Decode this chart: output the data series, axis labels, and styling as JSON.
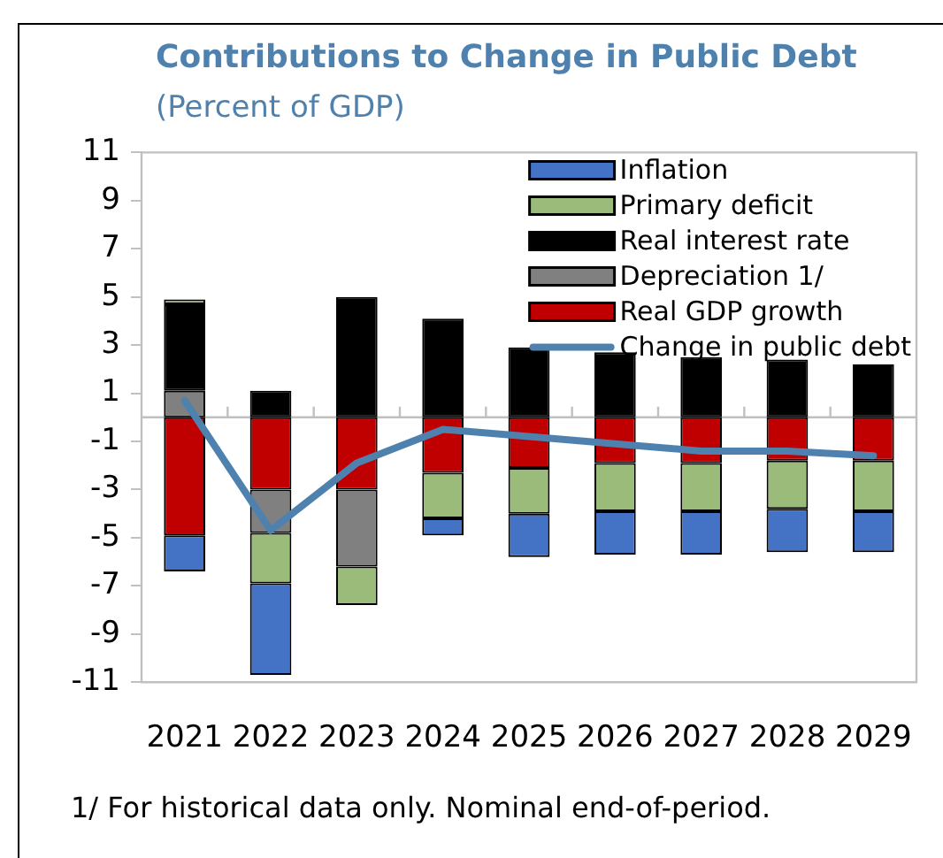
{
  "chart_data": {
    "type": "bar",
    "title": "Contributions to Change in Public Debt",
    "subtitle": "(Percent of GDP)",
    "categories": [
      "2021",
      "2022",
      "2023",
      "2024",
      "2025",
      "2026",
      "2027",
      "2028",
      "2029"
    ],
    "stacked": true,
    "series": [
      {
        "name": "Real GDP growth",
        "color": "#c00000",
        "values": [
          -4.9,
          -3.0,
          -3.0,
          -2.3,
          -2.1,
          -1.9,
          -1.9,
          -1.8,
          -1.8
        ]
      },
      {
        "name": "Depreciation 1/",
        "color": "#808080",
        "values": [
          1.1,
          -1.8,
          -3.2,
          null,
          null,
          null,
          null,
          null,
          null
        ]
      },
      {
        "name": "Real interest rate",
        "color": "#000000",
        "values": [
          3.6,
          1.1,
          5.0,
          4.1,
          2.9,
          2.7,
          2.5,
          2.4,
          2.2
        ]
      },
      {
        "name": "Primary deficit",
        "color": "#9bbb7b",
        "values": [
          0.2,
          -2.1,
          -1.6,
          -1.9,
          -1.9,
          -2.0,
          -2.0,
          -2.0,
          -2.1
        ]
      },
      {
        "name": "Inflation",
        "color": "#4472c4",
        "values": [
          -1.5,
          -3.8,
          null,
          -0.7,
          -1.8,
          -1.8,
          -1.8,
          -1.8,
          -1.7
        ]
      },
      {
        "name": "Change in public debt",
        "type": "line",
        "color": "#4e81ad",
        "values": [
          0.7,
          -4.7,
          -1.9,
          -0.5,
          -0.8,
          -1.1,
          -1.4,
          -1.4,
          -1.6
        ]
      }
    ],
    "ylim": [
      -11,
      11
    ],
    "yticks": [
      -11,
      -9,
      -7,
      -5,
      -3,
      -1,
      1,
      3,
      5,
      7,
      9,
      11
    ],
    "legend": "top right",
    "marker": "none",
    "annotations": [
      "1/ For historical data only. Nominal end-of-period."
    ]
  }
}
